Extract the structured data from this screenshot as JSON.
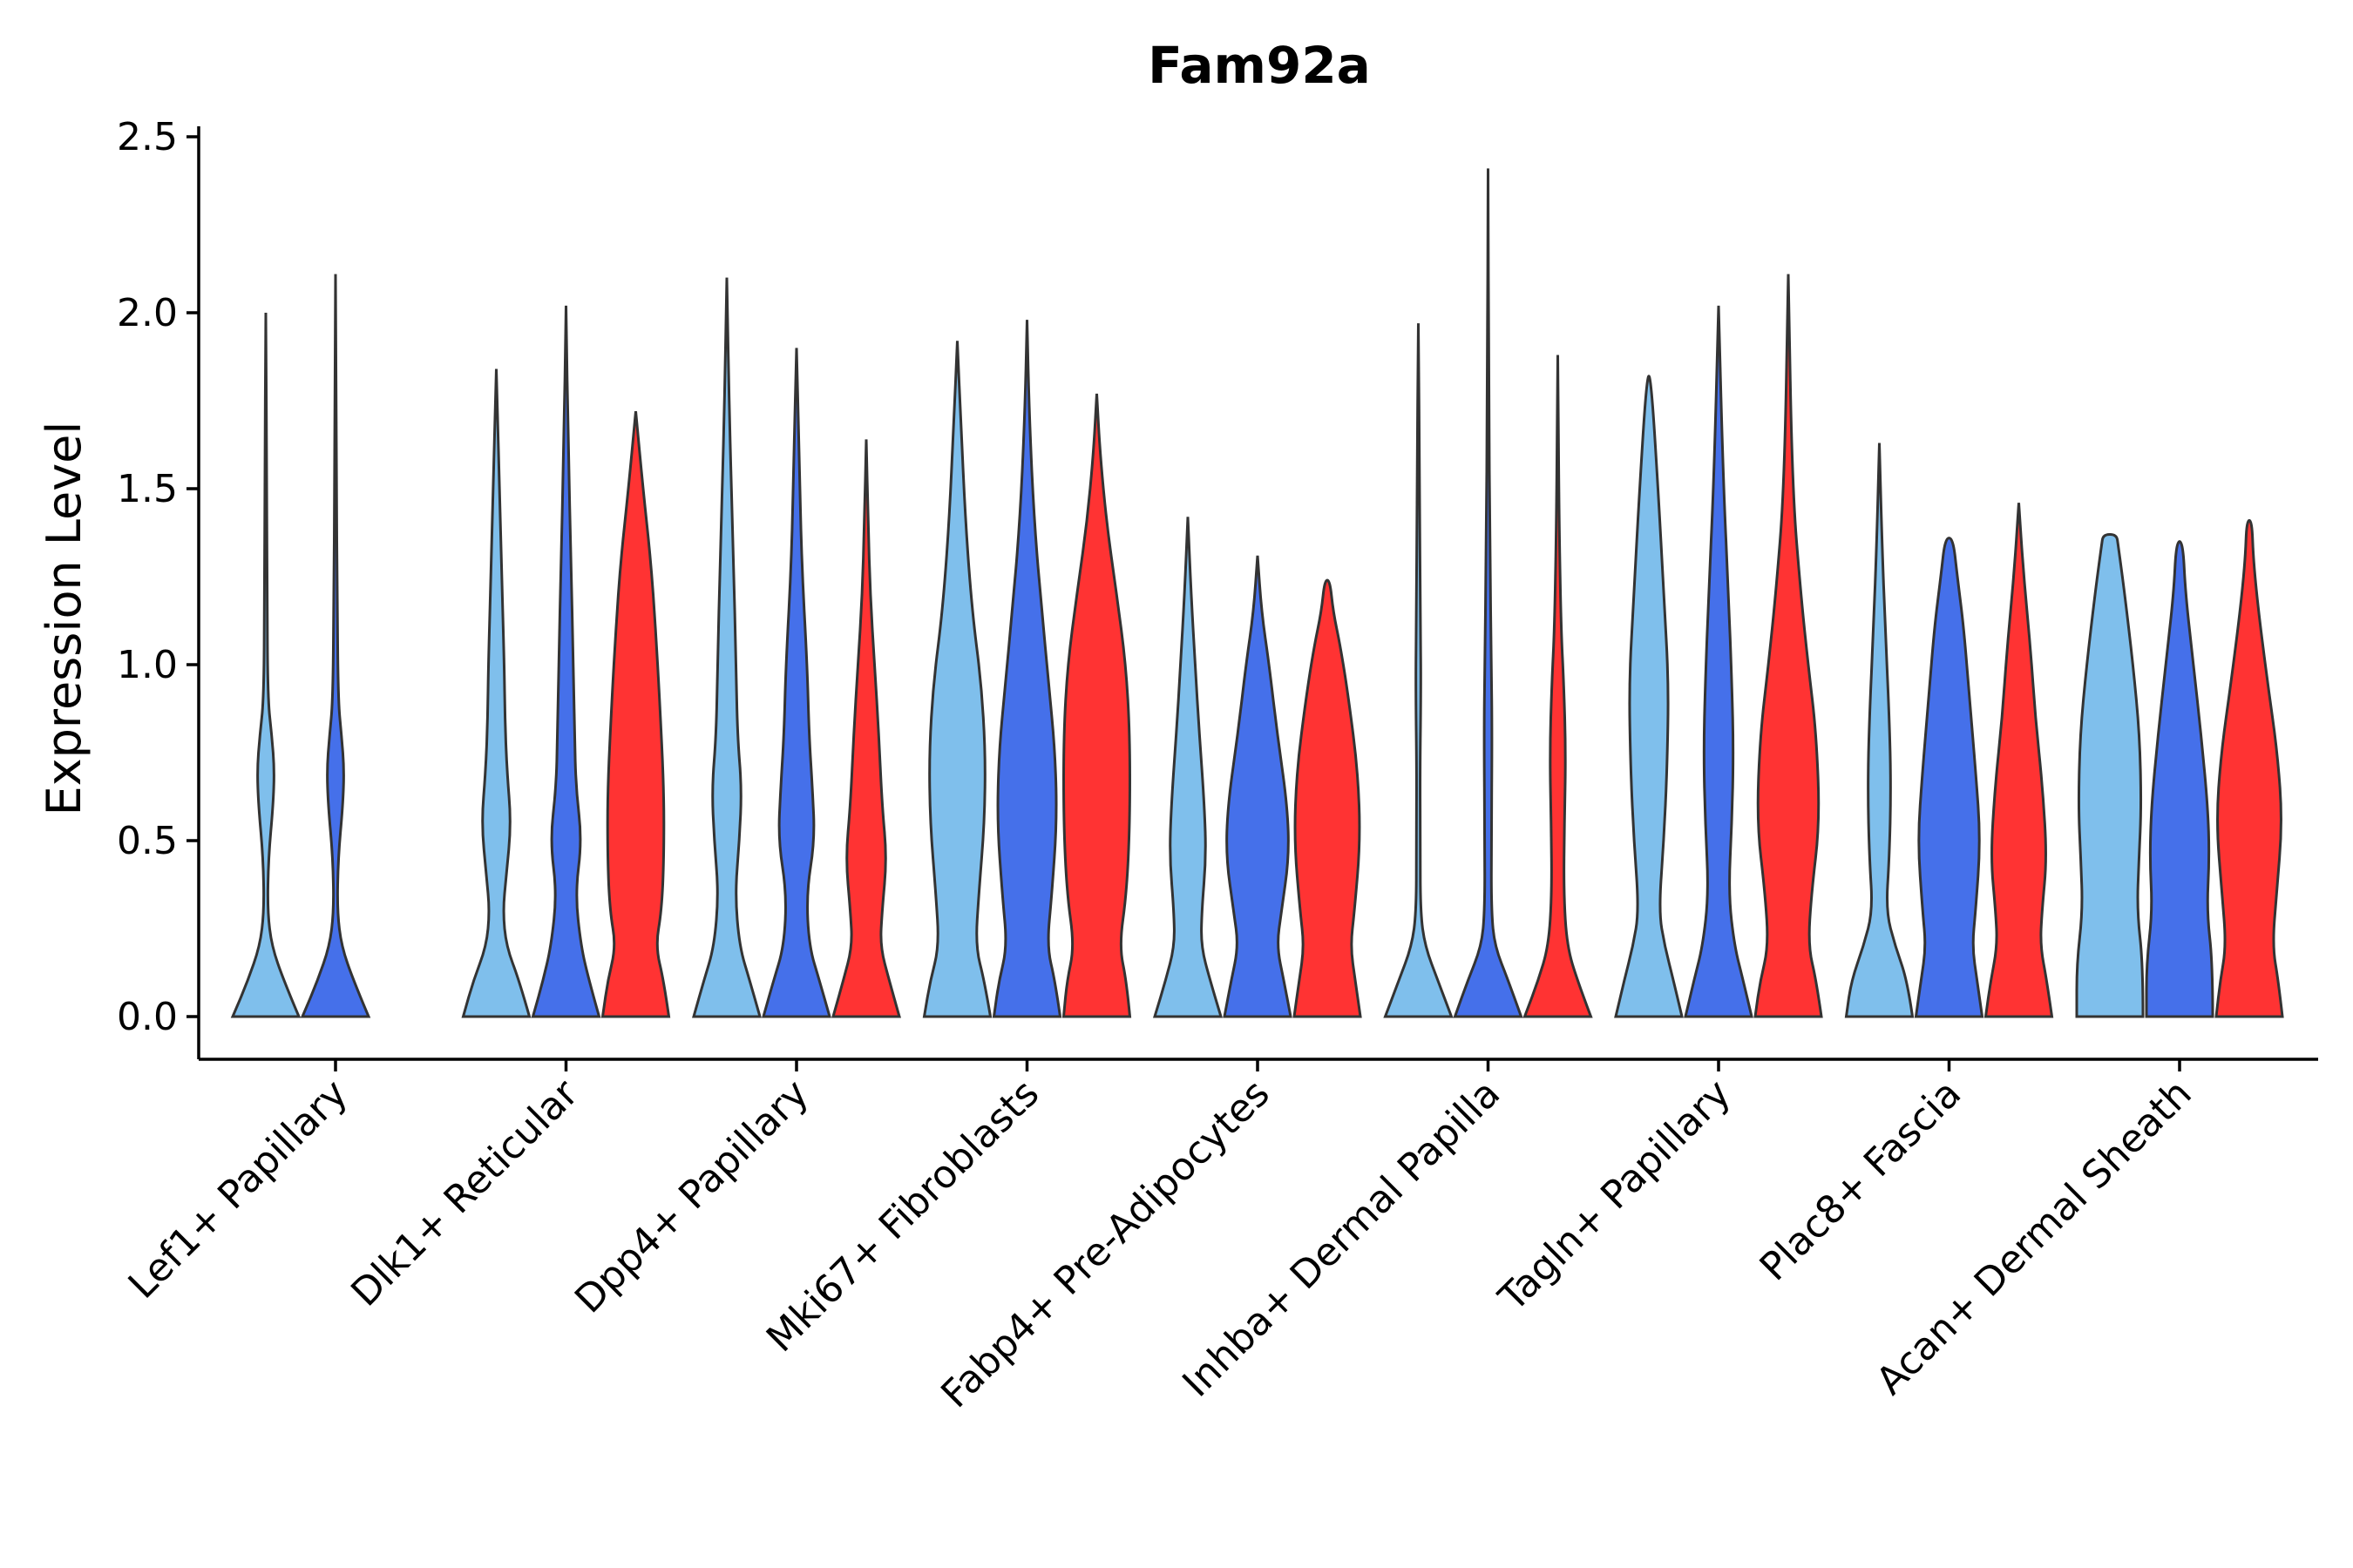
{
  "chart_data": {
    "type": "violin",
    "title": "Fam92a",
    "xlabel": "",
    "ylabel": "Expression Level",
    "ylim": [
      -0.12,
      2.55
    ],
    "yticks": [
      "0.0",
      "0.5",
      "1.0",
      "1.5",
      "2.0",
      "2.5"
    ],
    "ytick_values": [
      0.0,
      0.5,
      1.0,
      1.5,
      2.0,
      2.5
    ],
    "categories": [
      "Lef1+ Papillary",
      "Dlk1+ Reticular",
      "Dpp4+ Papillary",
      "Mki67+ Fibroblasts",
      "Fabp4+ Pre-Adipocytes",
      "Inhba+ Dermal Papilla",
      "Tagln+ Papillary",
      "Plac8+ Fascia",
      "Acan+ Dermal Sheath"
    ],
    "series": [
      {
        "name": "group-1",
        "color": "#7FBFEC"
      },
      {
        "name": "group-2",
        "color": "#4570EA"
      },
      {
        "name": "group-3",
        "color": "#FF3333"
      }
    ],
    "violins": [
      {
        "category": 0,
        "series": 0,
        "max": 2.0,
        "shape": [
          [
            0,
            1.0
          ],
          [
            0.1,
            0.55
          ],
          [
            0.2,
            0.18
          ],
          [
            0.3,
            0.05
          ],
          [
            0.45,
            0.08
          ],
          [
            0.6,
            0.22
          ],
          [
            0.7,
            0.26
          ],
          [
            0.8,
            0.18
          ],
          [
            0.9,
            0.06
          ],
          [
            1.2,
            0.04
          ],
          [
            1.5,
            0.03
          ],
          [
            2.0,
            0
          ]
        ]
      },
      {
        "category": 0,
        "series": 1,
        "max": 2.11,
        "shape": [
          [
            0,
            1.0
          ],
          [
            0.1,
            0.55
          ],
          [
            0.2,
            0.18
          ],
          [
            0.3,
            0.05
          ],
          [
            0.45,
            0.08
          ],
          [
            0.6,
            0.22
          ],
          [
            0.7,
            0.26
          ],
          [
            0.8,
            0.18
          ],
          [
            0.9,
            0.08
          ],
          [
            1.2,
            0.05
          ],
          [
            1.5,
            0.03
          ],
          [
            2.11,
            0
          ]
        ]
      },
      {
        "category": 1,
        "series": 0,
        "max": 1.84,
        "shape": [
          [
            0,
            1.0
          ],
          [
            0.1,
            0.7
          ],
          [
            0.2,
            0.3
          ],
          [
            0.3,
            0.2
          ],
          [
            0.4,
            0.3
          ],
          [
            0.55,
            0.45
          ],
          [
            0.7,
            0.32
          ],
          [
            0.85,
            0.26
          ],
          [
            1.0,
            0.24
          ],
          [
            1.3,
            0.15
          ],
          [
            1.84,
            0
          ]
        ]
      },
      {
        "category": 1,
        "series": 1,
        "max": 2.02,
        "shape": [
          [
            0,
            1.0
          ],
          [
            0.1,
            0.7
          ],
          [
            0.2,
            0.45
          ],
          [
            0.35,
            0.28
          ],
          [
            0.5,
            0.48
          ],
          [
            0.65,
            0.3
          ],
          [
            0.8,
            0.26
          ],
          [
            1.0,
            0.22
          ],
          [
            1.3,
            0.15
          ],
          [
            1.6,
            0.07
          ],
          [
            2.02,
            0
          ]
        ]
      },
      {
        "category": 1,
        "series": 2,
        "max": 1.72,
        "shape": [
          [
            0,
            1.0
          ],
          [
            0.1,
            0.85
          ],
          [
            0.2,
            0.6
          ],
          [
            0.3,
            0.78
          ],
          [
            0.45,
            0.85
          ],
          [
            0.65,
            0.85
          ],
          [
            0.9,
            0.72
          ],
          [
            1.1,
            0.6
          ],
          [
            1.3,
            0.45
          ],
          [
            1.5,
            0.22
          ],
          [
            1.72,
            0
          ]
        ]
      },
      {
        "category": 2,
        "series": 0,
        "max": 2.1,
        "shape": [
          [
            0,
            1.0
          ],
          [
            0.1,
            0.7
          ],
          [
            0.2,
            0.38
          ],
          [
            0.35,
            0.25
          ],
          [
            0.5,
            0.38
          ],
          [
            0.65,
            0.45
          ],
          [
            0.8,
            0.32
          ],
          [
            1.0,
            0.28
          ],
          [
            1.3,
            0.2
          ],
          [
            1.7,
            0.08
          ],
          [
            2.1,
            0
          ]
        ]
      },
      {
        "category": 2,
        "series": 1,
        "max": 1.9,
        "shape": [
          [
            0,
            1.0
          ],
          [
            0.1,
            0.7
          ],
          [
            0.2,
            0.38
          ],
          [
            0.35,
            0.3
          ],
          [
            0.5,
            0.55
          ],
          [
            0.65,
            0.48
          ],
          [
            0.8,
            0.38
          ],
          [
            1.0,
            0.32
          ],
          [
            1.3,
            0.15
          ],
          [
            1.6,
            0.08
          ],
          [
            1.9,
            0
          ]
        ]
      },
      {
        "category": 2,
        "series": 2,
        "max": 1.64,
        "shape": [
          [
            0,
            1.0
          ],
          [
            0.1,
            0.7
          ],
          [
            0.2,
            0.42
          ],
          [
            0.3,
            0.48
          ],
          [
            0.45,
            0.62
          ],
          [
            0.6,
            0.48
          ],
          [
            0.8,
            0.38
          ],
          [
            1.0,
            0.25
          ],
          [
            1.2,
            0.12
          ],
          [
            1.4,
            0.06
          ],
          [
            1.64,
            0
          ]
        ]
      },
      {
        "category": 3,
        "series": 0,
        "max": 1.92,
        "shape": [
          [
            0,
            1.0
          ],
          [
            0.1,
            0.82
          ],
          [
            0.2,
            0.55
          ],
          [
            0.35,
            0.65
          ],
          [
            0.55,
            0.82
          ],
          [
            0.75,
            0.85
          ],
          [
            0.95,
            0.72
          ],
          [
            1.15,
            0.45
          ],
          [
            1.4,
            0.25
          ],
          [
            1.7,
            0.1
          ],
          [
            1.92,
            0
          ]
        ]
      },
      {
        "category": 3,
        "series": 1,
        "max": 1.98,
        "shape": [
          [
            0,
            1.0
          ],
          [
            0.1,
            0.85
          ],
          [
            0.2,
            0.6
          ],
          [
            0.35,
            0.75
          ],
          [
            0.55,
            0.9
          ],
          [
            0.75,
            0.85
          ],
          [
            0.95,
            0.65
          ],
          [
            1.15,
            0.45
          ],
          [
            1.4,
            0.22
          ],
          [
            1.7,
            0.07
          ],
          [
            1.98,
            0
          ]
        ]
      },
      {
        "category": 3,
        "series": 2,
        "max": 1.77,
        "shape": [
          [
            0,
            1.0
          ],
          [
            0.1,
            0.9
          ],
          [
            0.2,
            0.68
          ],
          [
            0.35,
            0.9
          ],
          [
            0.55,
            1.0
          ],
          [
            0.8,
            1.0
          ],
          [
            1.0,
            0.88
          ],
          [
            1.2,
            0.6
          ],
          [
            1.4,
            0.3
          ],
          [
            1.6,
            0.1
          ],
          [
            1.77,
            0
          ]
        ]
      },
      {
        "category": 4,
        "series": 0,
        "max": 1.42,
        "shape": [
          [
            0,
            1.0
          ],
          [
            0.1,
            0.68
          ],
          [
            0.2,
            0.4
          ],
          [
            0.3,
            0.42
          ],
          [
            0.45,
            0.55
          ],
          [
            0.6,
            0.5
          ],
          [
            0.8,
            0.35
          ],
          [
            1.0,
            0.22
          ],
          [
            1.2,
            0.1
          ],
          [
            1.42,
            0
          ]
        ]
      },
      {
        "category": 4,
        "series": 1,
        "max": 1.31,
        "shape": [
          [
            0,
            1.0
          ],
          [
            0.1,
            0.8
          ],
          [
            0.2,
            0.58
          ],
          [
            0.3,
            0.72
          ],
          [
            0.45,
            0.95
          ],
          [
            0.6,
            0.9
          ],
          [
            0.8,
            0.6
          ],
          [
            1.0,
            0.35
          ],
          [
            1.15,
            0.12
          ],
          [
            1.31,
            0
          ]
        ]
      },
      {
        "category": 4,
        "series": 2,
        "max": 1.24,
        "shape": [
          [
            0,
            1.0
          ],
          [
            0.1,
            0.85
          ],
          [
            0.2,
            0.7
          ],
          [
            0.3,
            0.82
          ],
          [
            0.5,
            1.0
          ],
          [
            0.7,
            0.92
          ],
          [
            0.9,
            0.65
          ],
          [
            1.05,
            0.4
          ],
          [
            1.15,
            0.18
          ],
          [
            1.24,
            0.08
          ]
        ]
      },
      {
        "category": 5,
        "series": 0,
        "max": 1.97,
        "shape": [
          [
            0,
            1.0
          ],
          [
            0.1,
            0.6
          ],
          [
            0.2,
            0.2
          ],
          [
            0.3,
            0.06
          ],
          [
            0.5,
            0.06
          ],
          [
            0.7,
            0.05
          ],
          [
            0.95,
            0.08
          ],
          [
            1.1,
            0.06
          ],
          [
            1.5,
            0.04
          ],
          [
            1.97,
            0
          ]
        ]
      },
      {
        "category": 5,
        "series": 1,
        "max": 2.41,
        "shape": [
          [
            0,
            1.0
          ],
          [
            0.1,
            0.62
          ],
          [
            0.2,
            0.2
          ],
          [
            0.3,
            0.1
          ],
          [
            0.5,
            0.1
          ],
          [
            0.8,
            0.12
          ],
          [
            1.0,
            0.1
          ],
          [
            1.3,
            0.06
          ],
          [
            1.8,
            0.02
          ],
          [
            2.41,
            0
          ]
        ]
      },
      {
        "category": 5,
        "series": 2,
        "max": 1.88,
        "shape": [
          [
            0,
            1.0
          ],
          [
            0.1,
            0.6
          ],
          [
            0.2,
            0.28
          ],
          [
            0.35,
            0.18
          ],
          [
            0.55,
            0.2
          ],
          [
            0.75,
            0.24
          ],
          [
            0.95,
            0.18
          ],
          [
            1.1,
            0.1
          ],
          [
            1.4,
            0.04
          ],
          [
            1.88,
            0
          ]
        ]
      },
      {
        "category": 6,
        "series": 0,
        "max": 1.82,
        "shape": [
          [
            0,
            1.0
          ],
          [
            0.1,
            0.75
          ],
          [
            0.2,
            0.48
          ],
          [
            0.3,
            0.3
          ],
          [
            0.5,
            0.45
          ],
          [
            0.7,
            0.55
          ],
          [
            0.95,
            0.6
          ],
          [
            1.2,
            0.45
          ],
          [
            1.5,
            0.28
          ],
          [
            1.82,
            0.06
          ]
        ]
      },
      {
        "category": 6,
        "series": 1,
        "max": 2.02,
        "shape": [
          [
            0,
            1.0
          ],
          [
            0.1,
            0.75
          ],
          [
            0.2,
            0.48
          ],
          [
            0.35,
            0.3
          ],
          [
            0.55,
            0.4
          ],
          [
            0.75,
            0.45
          ],
          [
            0.95,
            0.4
          ],
          [
            1.2,
            0.3
          ],
          [
            1.5,
            0.15
          ],
          [
            2.02,
            0
          ]
        ]
      },
      {
        "category": 6,
        "series": 2,
        "max": 2.11,
        "shape": [
          [
            0,
            1.0
          ],
          [
            0.1,
            0.85
          ],
          [
            0.2,
            0.6
          ],
          [
            0.35,
            0.7
          ],
          [
            0.55,
            0.95
          ],
          [
            0.8,
            0.85
          ],
          [
            1.0,
            0.6
          ],
          [
            1.2,
            0.38
          ],
          [
            1.5,
            0.12
          ],
          [
            2.11,
            0
          ]
        ]
      },
      {
        "category": 7,
        "series": 0,
        "max": 1.63,
        "shape": [
          [
            0,
            1.0
          ],
          [
            0.1,
            0.85
          ],
          [
            0.2,
            0.48
          ],
          [
            0.3,
            0.2
          ],
          [
            0.45,
            0.3
          ],
          [
            0.65,
            0.35
          ],
          [
            0.85,
            0.3
          ],
          [
            1.1,
            0.18
          ],
          [
            1.35,
            0.08
          ],
          [
            1.63,
            0
          ]
        ]
      },
      {
        "category": 7,
        "series": 1,
        "max": 1.36,
        "shape": [
          [
            0,
            1.0
          ],
          [
            0.1,
            0.85
          ],
          [
            0.2,
            0.7
          ],
          [
            0.3,
            0.8
          ],
          [
            0.5,
            0.95
          ],
          [
            0.7,
            0.8
          ],
          [
            0.9,
            0.62
          ],
          [
            1.1,
            0.45
          ],
          [
            1.25,
            0.25
          ],
          [
            1.36,
            0.12
          ]
        ]
      },
      {
        "category": 7,
        "series": 2,
        "max": 1.46,
        "shape": [
          [
            0,
            1.0
          ],
          [
            0.1,
            0.85
          ],
          [
            0.2,
            0.65
          ],
          [
            0.3,
            0.7
          ],
          [
            0.45,
            0.85
          ],
          [
            0.65,
            0.72
          ],
          [
            0.85,
            0.5
          ],
          [
            1.05,
            0.35
          ],
          [
            1.25,
            0.15
          ],
          [
            1.46,
            0
          ]
        ]
      },
      {
        "category": 8,
        "series": 0,
        "max": 1.37,
        "shape": [
          [
            0,
            1.0
          ],
          [
            0.15,
            1.0
          ],
          [
            0.3,
            0.82
          ],
          [
            0.45,
            0.88
          ],
          [
            0.6,
            0.95
          ],
          [
            0.8,
            0.9
          ],
          [
            1.0,
            0.7
          ],
          [
            1.2,
            0.45
          ],
          [
            1.34,
            0.25
          ],
          [
            1.37,
            0.2
          ]
        ]
      },
      {
        "category": 8,
        "series": 1,
        "max": 1.35,
        "shape": [
          [
            0,
            1.0
          ],
          [
            0.15,
            1.0
          ],
          [
            0.3,
            0.82
          ],
          [
            0.45,
            0.9
          ],
          [
            0.6,
            0.85
          ],
          [
            0.8,
            0.65
          ],
          [
            1.0,
            0.42
          ],
          [
            1.2,
            0.18
          ],
          [
            1.35,
            0.1
          ]
        ]
      },
      {
        "category": 8,
        "series": 2,
        "max": 1.41,
        "shape": [
          [
            0,
            1.0
          ],
          [
            0.1,
            0.88
          ],
          [
            0.2,
            0.7
          ],
          [
            0.35,
            0.82
          ],
          [
            0.55,
            1.0
          ],
          [
            0.75,
            0.85
          ],
          [
            0.95,
            0.55
          ],
          [
            1.15,
            0.28
          ],
          [
            1.3,
            0.12
          ],
          [
            1.41,
            0.08
          ]
        ]
      }
    ]
  }
}
